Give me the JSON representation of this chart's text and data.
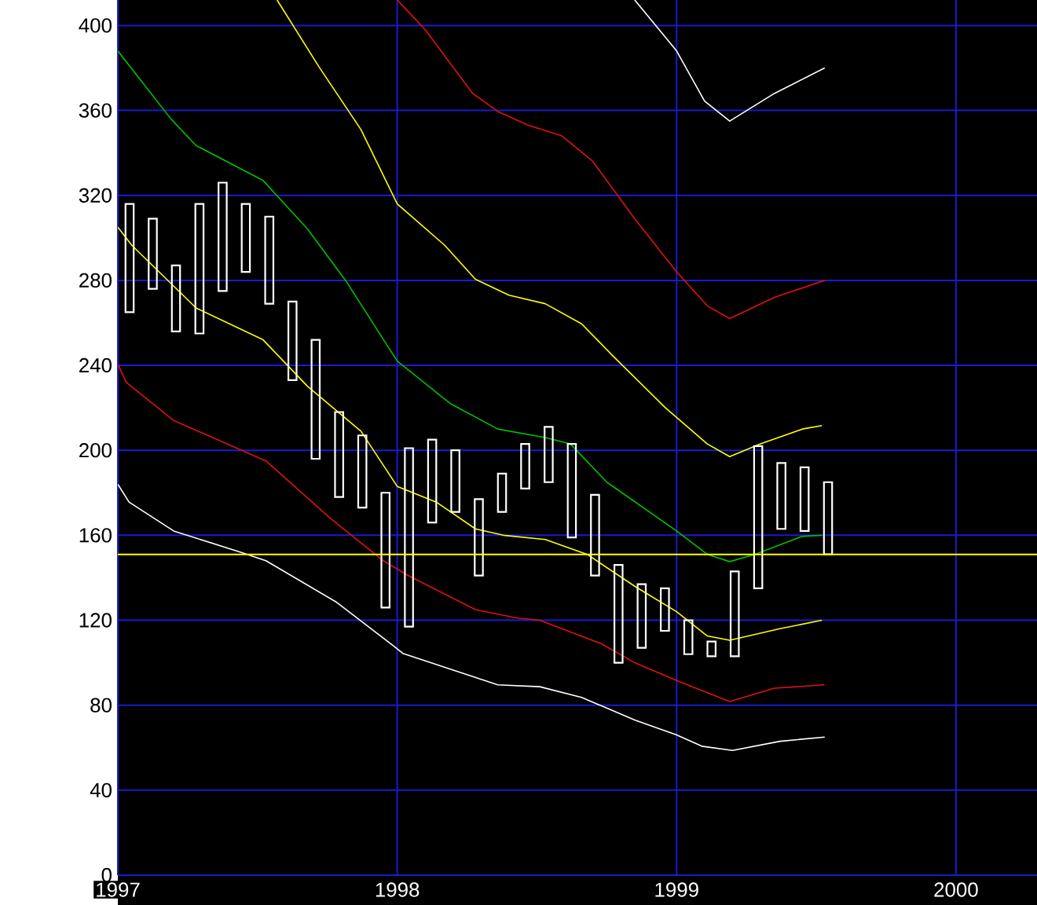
{
  "chart_data": {
    "type": "line",
    "xlim": [
      1997,
      2000.29
    ],
    "ylim": [
      0,
      412
    ],
    "xticks": [
      1997,
      1998,
      1999,
      2000
    ],
    "yticks": [
      0,
      40,
      80,
      120,
      160,
      200,
      240,
      280,
      320,
      360,
      400
    ],
    "grid": true,
    "ref_lines": [
      {
        "axis": "y",
        "value": 151,
        "color": "#ffff00"
      }
    ],
    "series": [
      {
        "color": "#ffffff",
        "x": [
          1997.0,
          1997.04,
          1997.2,
          1997.44,
          1997.53,
          1997.78,
          1997.99,
          1998.02,
          1998.36,
          1998.51,
          1998.66,
          1998.85,
          1999.0,
          1999.09,
          1999.2,
          1999.37,
          1999.53
        ],
        "values": [
          184,
          175.6,
          162,
          152,
          148,
          128.7,
          107.6,
          104.4,
          89.6,
          88.7,
          83.7,
          73,
          66,
          60.7,
          58.7,
          63,
          65
        ]
      },
      {
        "color": "#e01010",
        "x": [
          1997.0,
          1997.03,
          1997.2,
          1997.53,
          1997.76,
          1997.95,
          1998.04,
          1998.28,
          1998.43,
          1998.51,
          1998.73,
          1998.85,
          1999.0,
          1999.19,
          1999.35,
          1999.53
        ],
        "values": [
          240.5,
          232,
          214,
          195,
          168,
          148,
          141,
          125,
          121,
          120,
          109,
          100,
          91.6,
          81.7,
          88,
          89.6
        ]
      },
      {
        "color": "#ffff00",
        "x": [
          1997.0,
          1997.05,
          1997.28,
          1997.52,
          1997.68,
          1997.87,
          1998.0,
          1998.14,
          1998.28,
          1998.38,
          1998.53,
          1998.68,
          1998.85,
          1999.0,
          1999.11,
          1999.19,
          1999.37,
          1999.52
        ],
        "values": [
          305,
          296.5,
          267,
          252,
          230,
          209,
          183,
          175.6,
          163,
          160,
          158,
          151,
          136,
          124,
          112.6,
          110.6,
          116,
          120
        ]
      },
      {
        "color": "#00c000",
        "x": [
          1997.0,
          1997.19,
          1997.28,
          1997.52,
          1997.68,
          1997.82,
          1998.0,
          1998.19,
          1998.36,
          1998.53,
          1998.62,
          1998.75,
          1999.0,
          1999.11,
          1999.19,
          1999.28,
          1999.45,
          1999.52
        ],
        "values": [
          388,
          356,
          343.5,
          327,
          304,
          279,
          242,
          222,
          210,
          206,
          203,
          185,
          162,
          151,
          147.6,
          151,
          159.5,
          160
        ]
      },
      {
        "color": "#ffff00",
        "x": [
          1997.57,
          1997.72,
          1997.87,
          1998.0,
          1998.17,
          1998.28,
          1998.4,
          1998.53,
          1998.66,
          1998.77,
          1998.96,
          1999.11,
          1999.19,
          1999.3,
          1999.45,
          1999.52
        ],
        "values": [
          412,
          380.5,
          351,
          316,
          296.5,
          280.5,
          273,
          269,
          259.5,
          244.7,
          220,
          203,
          197,
          203,
          210,
          211.6
        ]
      },
      {
        "color": "#e01010",
        "x": [
          1998.0,
          1998.1,
          1998.27,
          1998.36,
          1998.47,
          1998.59,
          1998.7,
          1998.85,
          1999.0,
          1999.11,
          1999.19,
          1999.35,
          1999.53
        ],
        "values": [
          412,
          398,
          368,
          359.5,
          353,
          348,
          336,
          309,
          284,
          268,
          262,
          272,
          280
        ]
      },
      {
        "color": "#ffffff",
        "x": [
          1998.85,
          1999.0,
          1999.1,
          1999.19,
          1999.35,
          1999.53
        ],
        "values": [
          412,
          388,
          364.4,
          355,
          368,
          380
        ]
      },
      {
        "type": "bar",
        "color": "#ffffff",
        "x": [
          1997.042,
          1997.125,
          1997.208,
          1997.292,
          1997.375,
          1997.458,
          1997.542,
          1997.625,
          1997.708,
          1997.792,
          1997.875,
          1997.958,
          1998.042,
          1998.125,
          1998.208,
          1998.292,
          1998.375,
          1998.458,
          1998.542,
          1998.625,
          1998.708,
          1998.792,
          1998.875,
          1998.958,
          1999.042,
          1999.125,
          1999.208,
          1999.292,
          1999.375,
          1999.458,
          1999.542
        ],
        "base": [
          265,
          276,
          256,
          255,
          275,
          284,
          269,
          233,
          196,
          178,
          173,
          126,
          117,
          166,
          171,
          141,
          171,
          182,
          185,
          159,
          141,
          100,
          107,
          115,
          104,
          103,
          103,
          135,
          163,
          162,
          151
        ],
        "values": [
          51,
          33,
          31,
          61,
          51,
          32,
          41,
          37,
          56,
          40,
          34,
          54,
          84,
          39,
          29,
          36,
          18,
          21,
          26,
          44,
          38,
          46,
          30,
          20,
          16,
          7,
          40,
          67,
          31,
          30,
          34
        ]
      }
    ]
  }
}
